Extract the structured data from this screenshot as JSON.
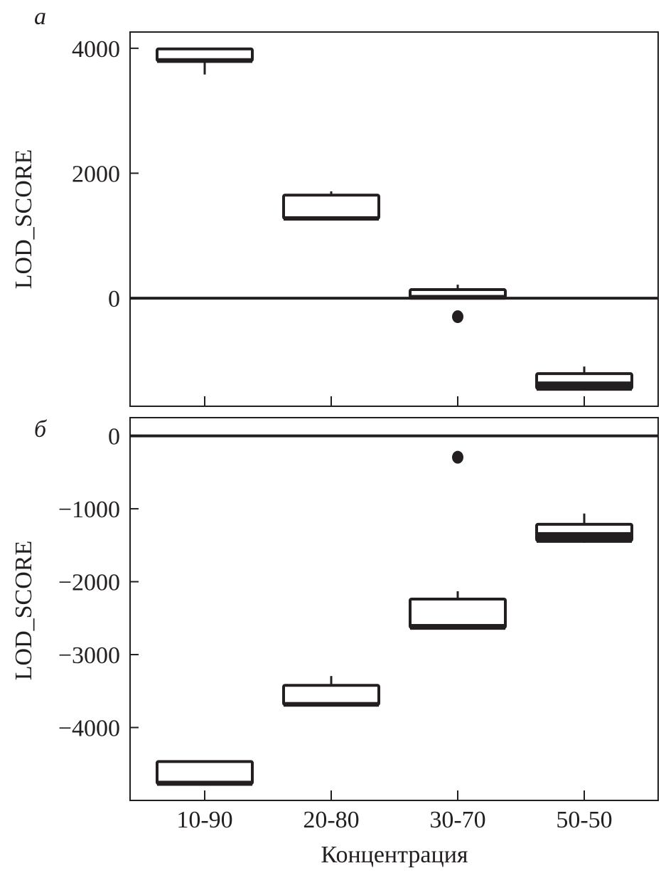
{
  "chart_data": [
    {
      "type": "box",
      "panel_label": "а",
      "ylabel": "LOD_SCORE",
      "xlabel": "",
      "categories": [
        "10-90",
        "20-80",
        "30-70",
        "50-50"
      ],
      "ylim": [
        -1730,
        4260
      ],
      "yticks": [
        0,
        2000,
        4000
      ],
      "ytick_labels": [
        "0",
        "2000",
        "4000"
      ],
      "reference_line": 0,
      "grid": false,
      "boxes": [
        {
          "min": 3580,
          "q1": 3800,
          "median": 3830,
          "q3": 3990,
          "max": 3990
        },
        {
          "min": 1270,
          "q1": 1276,
          "median": 1300,
          "q3": 1650,
          "max": 1710
        },
        {
          "min": 10,
          "q1": 10,
          "median": 40,
          "q3": 137,
          "max": 216
        },
        {
          "min": -1480,
          "q1": -1447,
          "median": -1345,
          "q3": -1208,
          "max": -1094
        }
      ],
      "outliers": [
        {
          "category": "30-70",
          "value": -296
        }
      ]
    },
    {
      "type": "box",
      "panel_label": "б",
      "ylabel": "LOD_SCORE",
      "xlabel": "Концентрация",
      "categories": [
        "10-90",
        "20-80",
        "30-70",
        "50-50"
      ],
      "ylim": [
        -5000,
        250
      ],
      "yticks": [
        0,
        -1000,
        -2000,
        -3000,
        -4000
      ],
      "ytick_labels": [
        "0",
        "−1000",
        "−2000",
        "−3000",
        "−4000"
      ],
      "reference_line": 0,
      "grid": false,
      "boxes": [
        {
          "min": -4770,
          "q1": -4770,
          "median": -4740,
          "q3": -4467,
          "max": -4467
        },
        {
          "min": -3685,
          "q1": -3685,
          "median": -3660,
          "q3": -3421,
          "max": -3294
        },
        {
          "min": -2630,
          "q1": -2630,
          "median": -2590,
          "q3": -2238,
          "max": -2131
        },
        {
          "min": -1466,
          "q1": -1437,
          "median": -1330,
          "q3": -1212,
          "max": -1065
        }
      ],
      "outliers": [
        {
          "category": "30-70",
          "value": -293
        }
      ]
    }
  ],
  "colors": {
    "ink": "#231f20",
    "background": "#ffffff"
  }
}
